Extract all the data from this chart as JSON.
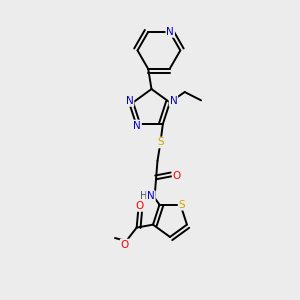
{
  "background_color": "#ececec",
  "atom_colors": {
    "C": "#000000",
    "N": "#0000cc",
    "O": "#ff0000",
    "S": "#ccaa00",
    "H": "#555555"
  },
  "bond_color": "#000000",
  "figsize": [
    3.0,
    3.0
  ],
  "dpi": 100,
  "lw": 1.4,
  "fontsize": 7.5
}
